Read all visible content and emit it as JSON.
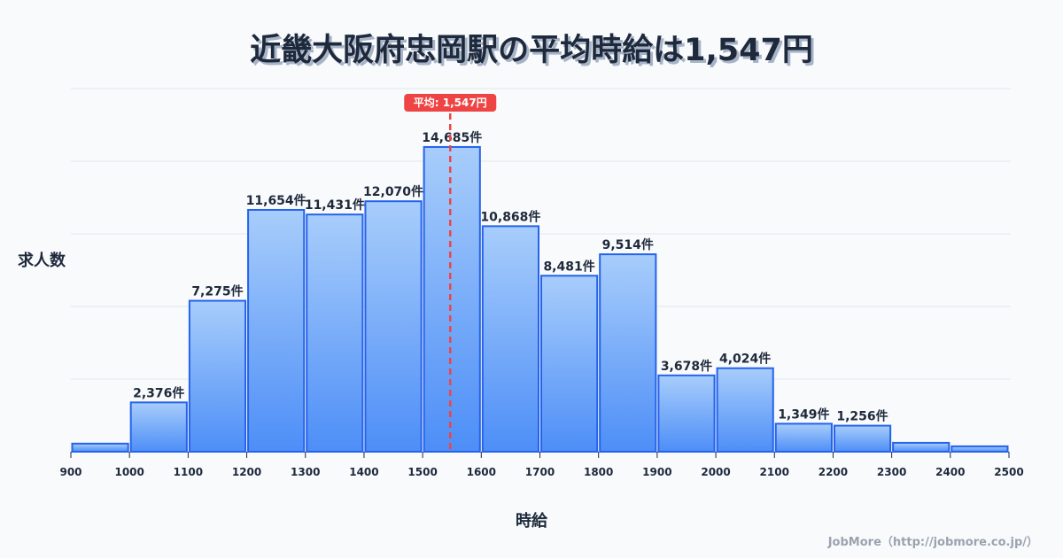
{
  "header": {
    "title": "近畿大阪府忠岡駅の平均時給は1,547円"
  },
  "axes": {
    "ylabel": "求人数",
    "xlabel": "時給"
  },
  "credit": "JobMore（http://jobmore.co.jp/）",
  "average": {
    "value": 1547,
    "label": "平均: 1,547円",
    "color": "#ef4444"
  },
  "colors": {
    "bar_top": "#a8cdfb",
    "bar_bottom": "#4d8ef7",
    "bar_border": "#2563eb",
    "grid": "#e2e8f0"
  },
  "chart_data": {
    "type": "bar",
    "title": "近畿大阪府忠岡駅の平均時給は1,547円",
    "xlabel": "時給",
    "ylabel": "求人数",
    "bin_edges": [
      900,
      1000,
      1100,
      1200,
      1300,
      1400,
      1500,
      1600,
      1700,
      1800,
      1900,
      2000,
      2100,
      2200,
      2300,
      2400,
      2500
    ],
    "categories": [
      "900-1000",
      "1000-1100",
      "1100-1200",
      "1200-1300",
      "1300-1400",
      "1400-1500",
      "1500-1600",
      "1600-1700",
      "1700-1800",
      "1800-1900",
      "1900-2000",
      "2000-2100",
      "2100-2200",
      "2200-2300",
      "2300-2400",
      "2400-2500"
    ],
    "values": [
      390,
      2376,
      7275,
      11654,
      11431,
      12070,
      14685,
      10868,
      8481,
      9514,
      3678,
      4024,
      1349,
      1256,
      430,
      260
    ],
    "labels": [
      "",
      "2,376件",
      "7,275件",
      "11,654件",
      "11,431件",
      "12,070件",
      "14,685件",
      "10,868件",
      "8,481件",
      "9,514件",
      "3,678件",
      "4,024件",
      "1,349件",
      "1,256件",
      "",
      ""
    ],
    "xticks": [
      "900",
      "1000",
      "1100",
      "1200",
      "1300",
      "1400",
      "1500",
      "1600",
      "1700",
      "1800",
      "1900",
      "2000",
      "2100",
      "2200",
      "2300",
      "2400",
      "2500"
    ],
    "ylim": [
      0,
      17500
    ],
    "grid": true,
    "annotations": [
      {
        "type": "vline",
        "x": 1547,
        "label": "平均: 1,547円"
      }
    ]
  }
}
